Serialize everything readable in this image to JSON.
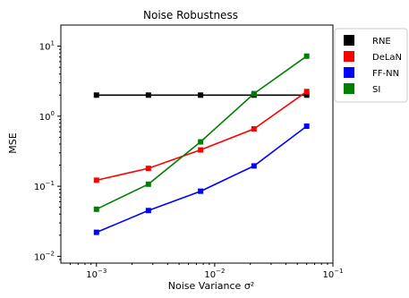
{
  "chart_data": {
    "type": "line",
    "title": "Noise Robustness",
    "xlabel": "Noise Variance σ²",
    "ylabel": "MSE",
    "x_scale": "log",
    "y_scale": "log",
    "xlim": [
      0.0005,
      0.1
    ],
    "ylim": [
      0.008,
      20
    ],
    "x_ticks": [
      {
        "value": 0.001,
        "base": "10",
        "exp": "−3"
      },
      {
        "value": 0.01,
        "base": "10",
        "exp": "−2"
      },
      {
        "value": 0.1,
        "base": "10",
        "exp": "−1"
      }
    ],
    "y_ticks": [
      {
        "value": 0.01,
        "base": "10",
        "exp": "−2"
      },
      {
        "value": 0.1,
        "base": "10",
        "exp": "−1"
      },
      {
        "value": 1,
        "base": "10",
        "exp": "0"
      },
      {
        "value": 10,
        "base": "10",
        "exp": "1"
      }
    ],
    "x": [
      0.001,
      0.00275,
      0.0076,
      0.0215,
      0.06
    ],
    "series": [
      {
        "name": "RNE",
        "color": "#000000",
        "values": [
          2.0,
          2.0,
          2.0,
          2.0,
          2.0
        ]
      },
      {
        "name": "DeLaN",
        "color": "#ff0000",
        "values": [
          0.122,
          0.18,
          0.33,
          0.66,
          2.25
        ]
      },
      {
        "name": "FF-NN",
        "color": "#0000ff",
        "values": [
          0.022,
          0.045,
          0.085,
          0.195,
          0.72
        ]
      },
      {
        "name": "SI",
        "color": "#008000",
        "values": [
          0.047,
          0.107,
          0.43,
          2.1,
          7.2
        ]
      }
    ],
    "legend_position": "outside-right",
    "grid": false
  }
}
